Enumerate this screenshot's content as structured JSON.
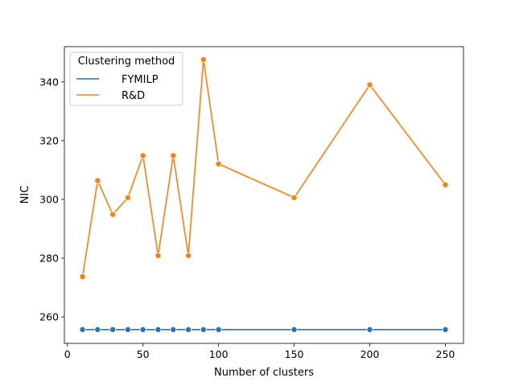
{
  "chart_data": {
    "type": "line",
    "xlabel": "Number of clusters",
    "ylabel": "NIC",
    "xlim": [
      -2,
      262
    ],
    "ylim": [
      251,
      352
    ],
    "xticks": [
      0,
      50,
      100,
      150,
      200,
      250
    ],
    "yticks": [
      260,
      280,
      300,
      320,
      340
    ],
    "grid": false,
    "legend": {
      "title": "Clustering method",
      "placement": "top-left"
    },
    "x": [
      10,
      20,
      30,
      40,
      50,
      60,
      70,
      80,
      90,
      100,
      150,
      200,
      250
    ],
    "series": [
      {
        "name": "FYMILP",
        "color": "#1f77b4",
        "values": [
          255.7,
          255.7,
          255.7,
          255.7,
          255.7,
          255.7,
          255.7,
          255.7,
          255.7,
          255.7,
          255.7,
          255.7,
          255.7
        ]
      },
      {
        "name": "R&D",
        "color": "#ff7f0e",
        "values": [
          273.7,
          306.4,
          294.9,
          300.6,
          314.9,
          280.9,
          314.9,
          280.9,
          347.6,
          312.1,
          300.6,
          339.0,
          305.0
        ]
      }
    ]
  }
}
